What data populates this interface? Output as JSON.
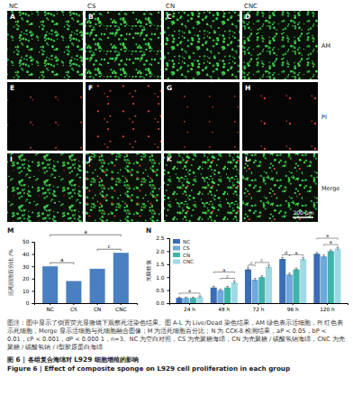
{
  "figure": {
    "columns": [
      "NC",
      "CS",
      "CN",
      "CNC"
    ],
    "rows": [
      "AM",
      "PI",
      "Merge"
    ],
    "panels": [
      "A",
      "B",
      "C",
      "D",
      "E",
      "F",
      "G",
      "H",
      "I",
      "J",
      "K",
      "L"
    ],
    "scale_bar": "200 μm"
  },
  "chart_data": [
    {
      "type": "bar",
      "panel": "M",
      "categories": [
        "NC",
        "CS",
        "CN",
        "CNC"
      ],
      "values": [
        30,
        18,
        28,
        41
      ],
      "color": "#4a7fc1",
      "ylabel": "活死细胞百分比 /%",
      "ylim": [
        0,
        50
      ],
      "yticks": [
        0,
        10,
        20,
        30,
        40,
        50
      ],
      "annotations": [
        {
          "from": 0,
          "to": 1,
          "label": "a"
        },
        {
          "from": 2,
          "to": 3,
          "label": "c"
        },
        {
          "from": 0,
          "to": 3,
          "label": "a"
        }
      ]
    },
    {
      "type": "bar",
      "panel": "N",
      "categories": [
        "24 h",
        "48 h",
        "72 h",
        "96 h",
        "120 h"
      ],
      "series": [
        {
          "name": "NC",
          "color": "#3a6db5",
          "values": [
            0.2,
            0.6,
            1.3,
            1.7,
            1.9
          ],
          "errors": [
            0.03,
            0.05,
            0.06,
            0.06,
            0.05
          ]
        },
        {
          "name": "CS",
          "color": "#6fa8dc",
          "values": [
            0.2,
            0.5,
            0.9,
            1.1,
            1.8
          ],
          "errors": [
            0.03,
            0.04,
            0.05,
            0.05,
            0.05
          ]
        },
        {
          "name": "CN",
          "color": "#3fb3a8",
          "values": [
            0.2,
            0.6,
            1.0,
            1.3,
            2.0
          ],
          "errors": [
            0.03,
            0.04,
            0.05,
            0.05,
            0.05
          ]
        },
        {
          "name": "CNC",
          "color": "#9fd9e3",
          "values": [
            0.25,
            0.8,
            1.4,
            1.7,
            2.1
          ],
          "errors": [
            0.03,
            0.05,
            0.06,
            0.06,
            0.05
          ]
        }
      ],
      "ylabel": "光吸收值",
      "ylim": [
        0,
        2.5
      ],
      "yticks": [
        {
          "value": 0,
          "label": "0.0"
        },
        0.5,
        {
          "value": 1,
          "label": "1.0"
        },
        1.5,
        {
          "value": 2,
          "label": "2.0"
        },
        2.5
      ],
      "legend": "top-left",
      "annotations": [
        {
          "category": 0,
          "from": 0,
          "to": 3,
          "label": "a"
        },
        {
          "category": 1,
          "from": 0,
          "to": 3,
          "label": "a"
        },
        {
          "category": 1,
          "from": 1,
          "to": 3,
          "label": "c"
        },
        {
          "category": 2,
          "from": 0,
          "to": 1,
          "label": "c"
        },
        {
          "category": 2,
          "from": 1,
          "to": 3,
          "label": "c"
        },
        {
          "category": 3,
          "from": 0,
          "to": 1,
          "label": "d"
        },
        {
          "category": 3,
          "from": 1,
          "to": 3,
          "label": "a"
        },
        {
          "category": 4,
          "from": 0,
          "to": 3,
          "label": "a"
        },
        {
          "category": 4,
          "from": 1,
          "to": 3,
          "label": "a"
        }
      ]
    }
  ],
  "caption": {
    "text": "图注：图中显示了倒置荧光显微镜下观察死活染色结果。图 A-L 为 Live/Dead 染色结果，AM 绿色表示活细胞，PI 红色表示死细胞，Merge 显示活细胞与死细胞融合图像；M 为活死细胞百分比；N 为 CCK-8 检测结果，aP < 0.05，bP < 0.01，cP < 0.001，dP < 0.000 1，n=3。NC 为空白对照，CS 为壳聚糖海绵，CN 为壳聚糖 / 碳酸氢钠海绵，CNC 为壳聚糖 / 碳酸氢钠 / Ⅰ型胶原蛋白海绵",
    "title": "图 6 | 各组复合海绵对 L929 细胞增殖的影响",
    "title_en": "Figure 6 | Effect of composite sponge on L929 cell proliferation in each group"
  }
}
